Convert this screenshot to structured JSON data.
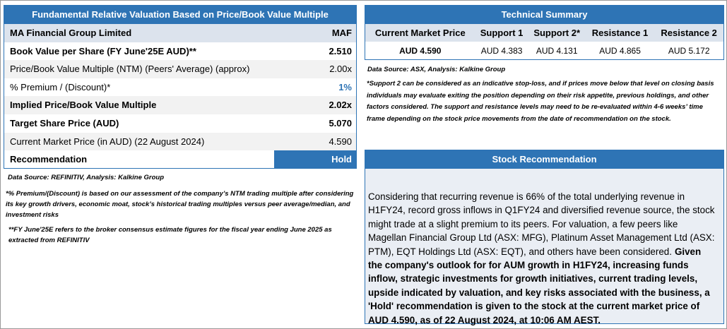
{
  "valuation_table": {
    "title": "Fundamental Relative Valuation Based on Price/Book Value Multiple",
    "header": [
      "MA Financial Group Limited",
      "MAF"
    ],
    "rows": [
      [
        "Book Value per Share (FY June'25E AUD)**",
        "2.510"
      ],
      [
        "Price/Book Value Multiple (NTM)  (Peers' Average) (approx)",
        "2.00x"
      ],
      [
        "% Premium / (Discount)*",
        "1%"
      ],
      [
        "Implied Price/Book Value Multiple",
        "2.02x"
      ],
      [
        "Target Share Price (AUD)",
        "5.070"
      ],
      [
        "Current Market Price (in AUD) (22 August 2024)",
        "4.590"
      ],
      [
        "Recommendation",
        "Hold"
      ]
    ]
  },
  "valuation_notes": {
    "source": "Data Source: REFINITIV, Analysis: Kalkine Group",
    "footnotes": [
      "*% Premium/(Discount) is based on our assessment of the company’s NTM trading multiple after considering its key growth drivers, economic moat, stock’s historical trading multiples versus peer average/median, and investment risks",
      "**FY June'25E refers to the broker consensus estimate figures for the fiscal year ending June 2025  as extracted from REFINITIV"
    ]
  },
  "technical_summary": {
    "title": "Technical Summary",
    "header": [
      "Current Market Price",
      "Support 1",
      "Support 2*",
      "Resistance 1",
      "Resistance 2"
    ],
    "row": [
      "AUD 4.590",
      "AUD 4.383",
      "AUD 4.131",
      "AUD 4.865",
      "AUD 5.172"
    ],
    "source": "Data Source: ASX, Analysis: Kalkine Group",
    "footnote": "*Support 2 can be considered as an indicative stop-loss, and if prices move below that level on closing basis individuals may evaluate exiting the position depending on their risk appetite, previous holdings, and other factors considered. The support and resistance levels may need to be re-evaluated within 4-6 weeks’ time frame depending on the stock price movements from the date of recommendation on the stock."
  },
  "stock_recommendation": {
    "title": "Stock Recommendation",
    "text": "Considering that recurring revenue is 66% of the total underlying revenue in H1FY24, record gross inflows in Q1FY24 and diversified revenue source, the stock might trade at a slight premium to its peers. For valuation, a few peers like Magellan Financial Group Ltd (ASX: MFG), Platinum Asset Management Ltd (ASX: PTM), EQT Holdings Ltd (ASX: EQT), and others have been considered.",
    "text_bold": "Given the company's outlook for for AUM growth in H1FY24, increasing funds inflow, strategic investments for growth initiatives, current trading levels, upside indicated by valuation, and key risks associated with the business, a 'Hold' recommendation is given to the stock at the current market price of AUD 4.590, as of 22 August 2024, at 10:06 AM AEST."
  }
}
